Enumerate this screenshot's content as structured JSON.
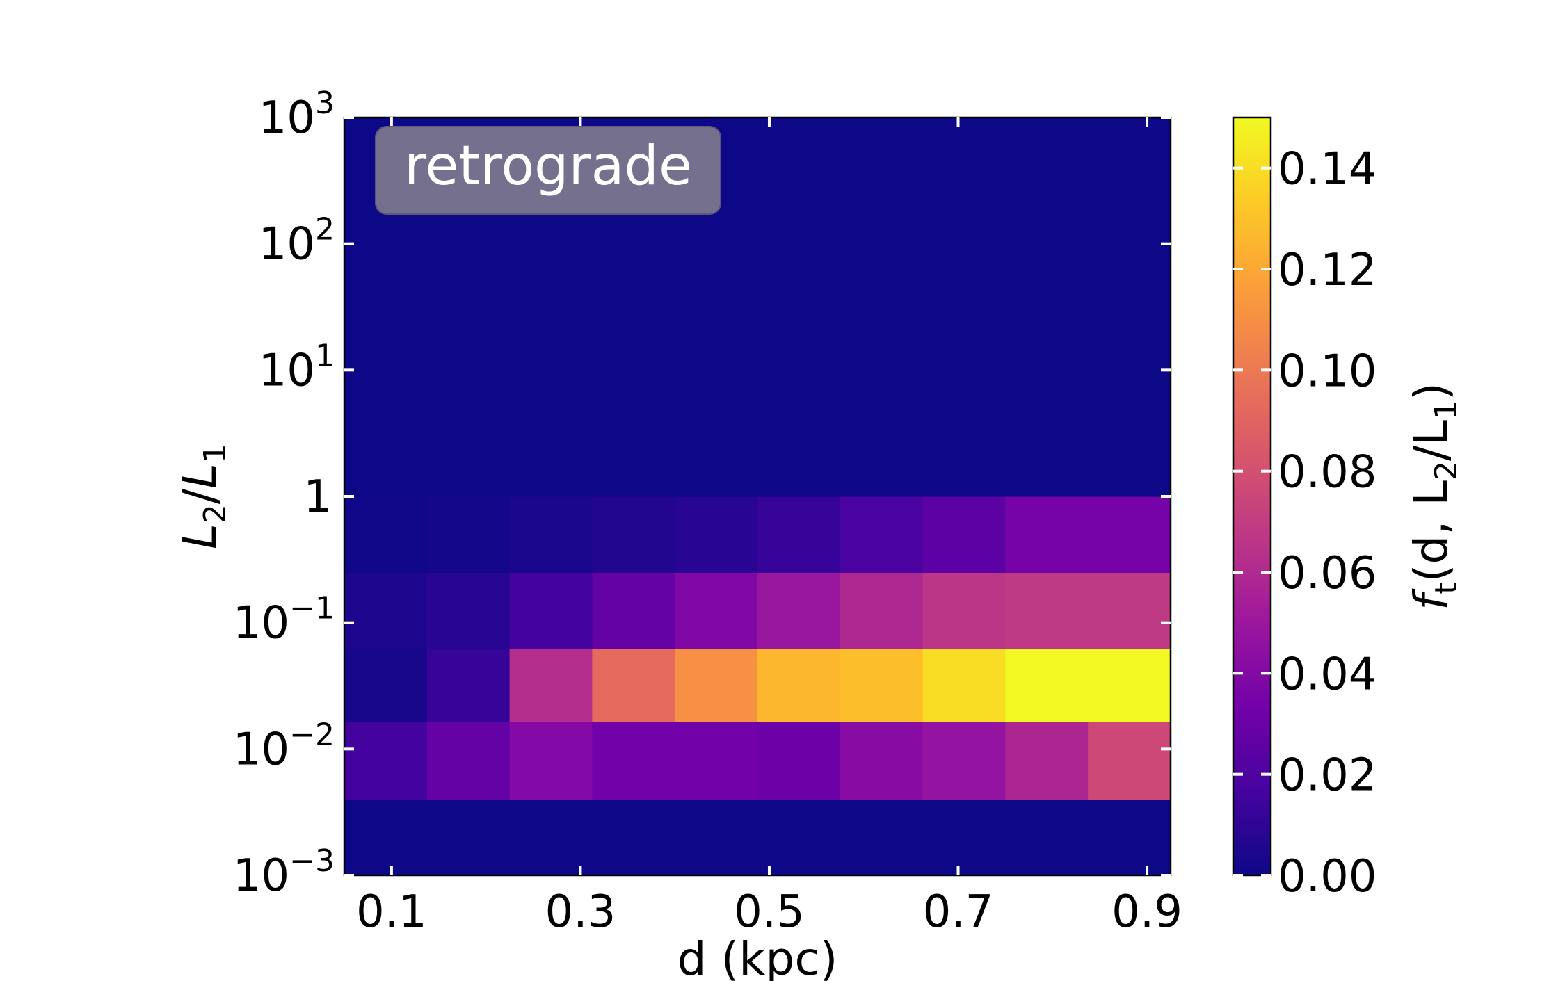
{
  "chart_data": {
    "type": "heatmap",
    "badge": "retrograde",
    "xlabel": "d (kpc)",
    "ylabel": {
      "main": "L",
      "sub1": "2",
      "slash": "/",
      "main2": "L",
      "sub2": "1"
    },
    "x_bin_edges": [
      0.05,
      0.1375,
      0.225,
      0.3125,
      0.4,
      0.4875,
      0.575,
      0.6625,
      0.75,
      0.8375,
      0.925
    ],
    "x_range": [
      0.05,
      0.925
    ],
    "x_ticks": [
      {
        "value": 0.1,
        "label": "0.1"
      },
      {
        "value": 0.3,
        "label": "0.3"
      },
      {
        "value": 0.5,
        "label": "0.5"
      },
      {
        "value": 0.7,
        "label": "0.7"
      },
      {
        "value": 0.9,
        "label": "0.9"
      }
    ],
    "y_scale": "log",
    "y_range": [
      0.001,
      1000
    ],
    "y_ticks": [
      {
        "value": 0.001,
        "base": "10",
        "exp": "−3"
      },
      {
        "value": 0.01,
        "base": "10",
        "exp": "−2"
      },
      {
        "value": 0.1,
        "base": "10",
        "exp": "−1"
      },
      {
        "value": 1,
        "base": "1",
        "exp": ""
      },
      {
        "value": 10,
        "base": "10",
        "exp": "1"
      },
      {
        "value": 100,
        "base": "10",
        "exp": "2"
      },
      {
        "value": 1000,
        "base": "10",
        "exp": "3"
      }
    ],
    "y_band_edges": [
      0.001,
      0.004,
      0.0165,
      0.0625,
      0.25,
      1,
      1000
    ],
    "cells": [
      [
        0.0,
        0.0,
        0.0,
        0.0,
        0.0,
        0.0,
        0.0,
        0.0,
        0.0,
        0.0
      ],
      [
        0.016,
        0.028,
        0.04,
        0.033,
        0.033,
        0.031,
        0.042,
        0.047,
        0.058,
        0.076
      ],
      [
        0.003,
        0.012,
        0.062,
        0.093,
        0.11,
        0.126,
        0.129,
        0.14,
        0.15,
        0.15
      ],
      [
        0.005,
        0.008,
        0.016,
        0.028,
        0.039,
        0.049,
        0.059,
        0.066,
        0.068,
        0.068
      ],
      [
        0.001,
        0.002,
        0.004,
        0.006,
        0.008,
        0.012,
        0.018,
        0.025,
        0.035,
        0.035
      ],
      [
        0.0,
        0.0,
        0.0,
        0.0,
        0.0,
        0.0,
        0.0,
        0.0,
        0.0,
        0.0
      ]
    ],
    "colorbar": {
      "label": {
        "f": "f",
        "fsub": "t",
        "text": "(d, L",
        "s2": "2",
        "mid": "/L",
        "s1": "1",
        "end": ")"
      },
      "range": [
        0.0,
        0.15
      ],
      "ticks": [
        {
          "value": 0.0,
          "label": "0.00"
        },
        {
          "value": 0.02,
          "label": "0.02"
        },
        {
          "value": 0.04,
          "label": "0.04"
        },
        {
          "value": 0.06,
          "label": "0.06"
        },
        {
          "value": 0.08,
          "label": "0.08"
        },
        {
          "value": 0.1,
          "label": "0.10"
        },
        {
          "value": 0.12,
          "label": "0.12"
        },
        {
          "value": 0.14,
          "label": "0.14"
        }
      ],
      "colormap": "plasma",
      "colormap_stops": [
        "#0d0887",
        "#46039f",
        "#7201a8",
        "#9c179e",
        "#bd3786",
        "#d8576b",
        "#ed7953",
        "#fb9f3a",
        "#fdca26",
        "#f0f921"
      ]
    }
  }
}
